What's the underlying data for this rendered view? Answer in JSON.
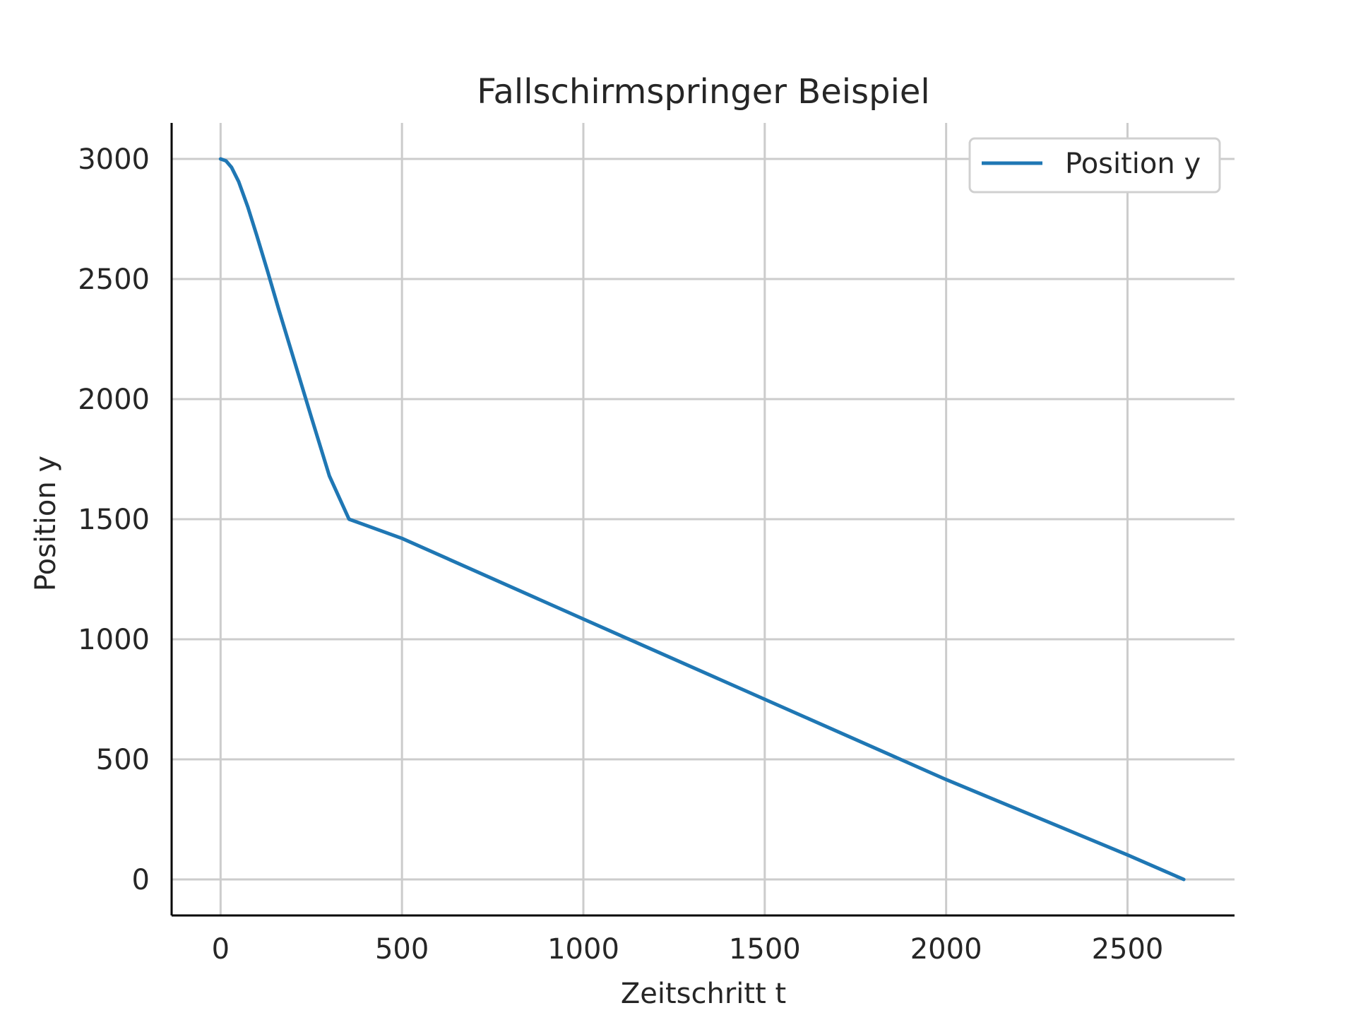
{
  "chart_data": {
    "type": "line",
    "title": "Fallschirmspringer Beispiel",
    "xlabel": "Zeitschritt t",
    "ylabel": "Position y",
    "xlim": [
      -135,
      2795
    ],
    "ylim": [
      -150,
      3150
    ],
    "xticks": [
      0,
      500,
      1000,
      1500,
      2000,
      2500
    ],
    "yticks": [
      0,
      500,
      1000,
      1500,
      2000,
      2500,
      3000
    ],
    "xtick_labels": [
      "0",
      "500",
      "1000",
      "1500",
      "2000",
      "2500"
    ],
    "ytick_labels": [
      "0",
      "500",
      "1000",
      "1500",
      "2000",
      "2500",
      "3000"
    ],
    "grid": true,
    "legend": {
      "position": "top-right",
      "entries": [
        "Position y"
      ]
    },
    "series": [
      {
        "name": "Position y",
        "color": "#1f77b4",
        "x": [
          0,
          15,
          30,
          50,
          75,
          100,
          130,
          160,
          200,
          250,
          300,
          354,
          500,
          1000,
          1500,
          2000,
          2500,
          2655
        ],
        "y": [
          3000,
          2992,
          2965,
          2905,
          2800,
          2680,
          2530,
          2375,
          2175,
          1925,
          1680,
          1500,
          1420,
          1084,
          750,
          416,
          102,
          0
        ]
      }
    ]
  }
}
